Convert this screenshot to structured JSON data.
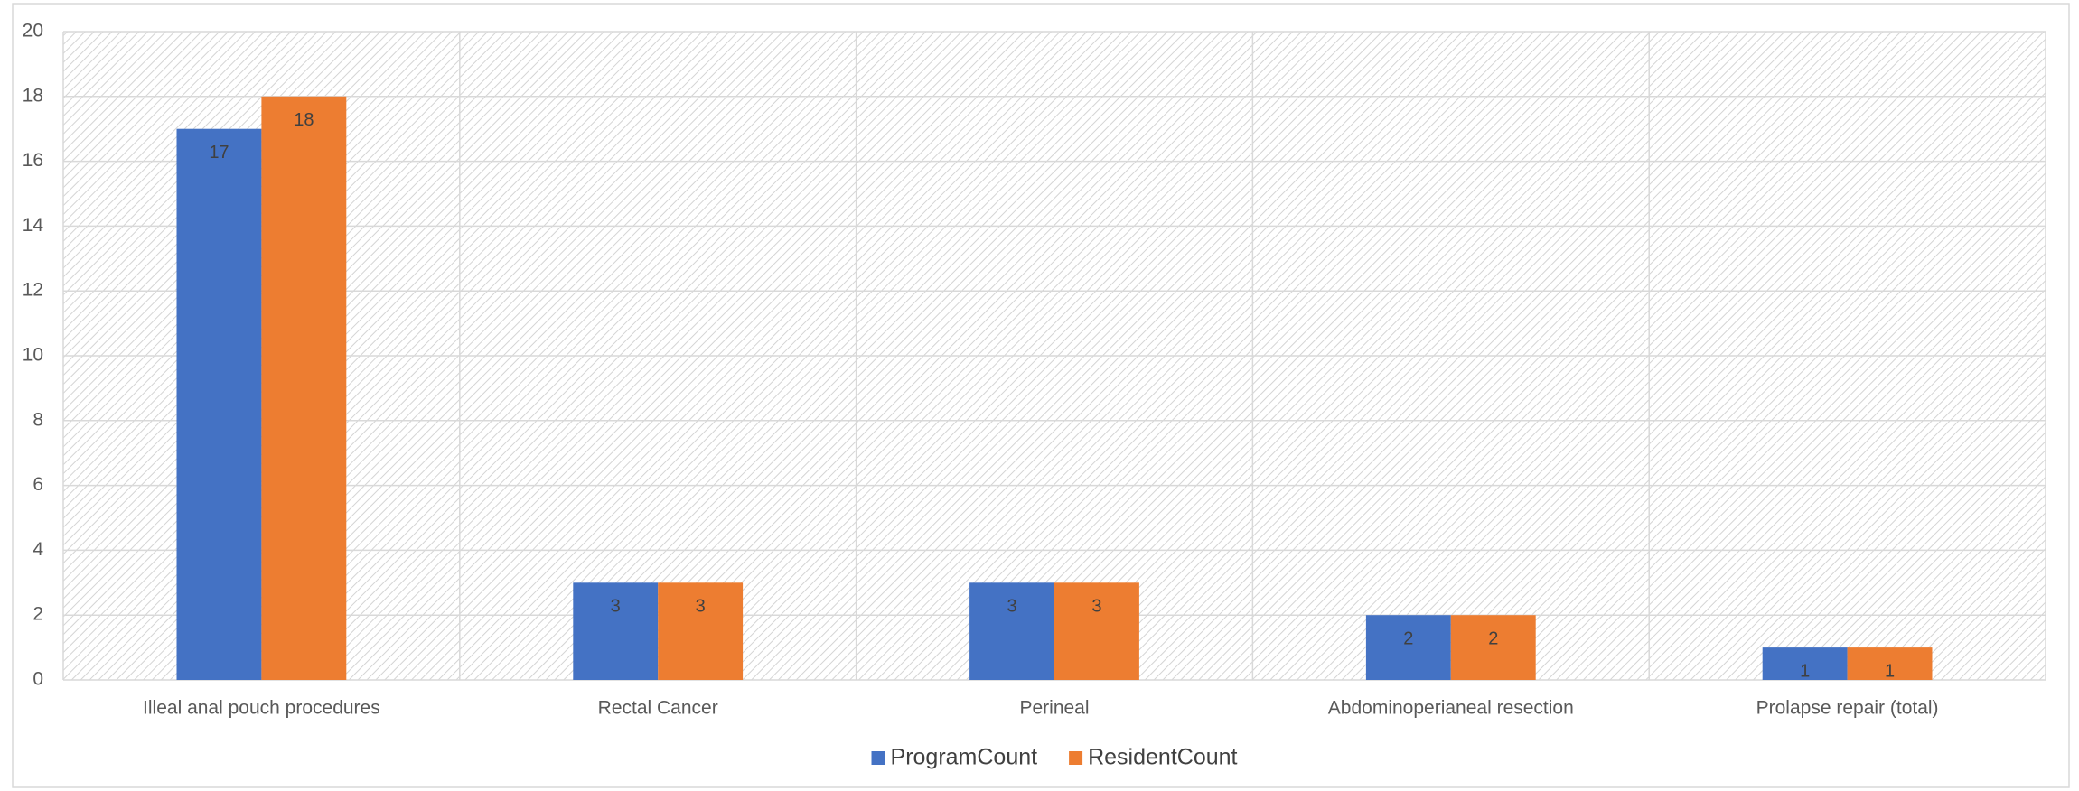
{
  "chart_data": {
    "type": "bar",
    "categories": [
      "Illeal anal pouch procedures",
      "Rectal Cancer",
      "Perineal",
      "Abdominoperianeal resection",
      "Prolapse repair (total)"
    ],
    "series": [
      {
        "name": "ProgramCount",
        "color": "#4472c4",
        "values": [
          17,
          3,
          3,
          2,
          1
        ]
      },
      {
        "name": "ResidentCount",
        "color": "#ed7d31",
        "values": [
          18,
          3,
          3,
          2,
          1
        ]
      }
    ],
    "ylim": [
      0,
      20
    ],
    "yticks": [
      0,
      2,
      4,
      6,
      8,
      10,
      12,
      14,
      16,
      18,
      20
    ],
    "grid": true,
    "legend": "bottom"
  }
}
